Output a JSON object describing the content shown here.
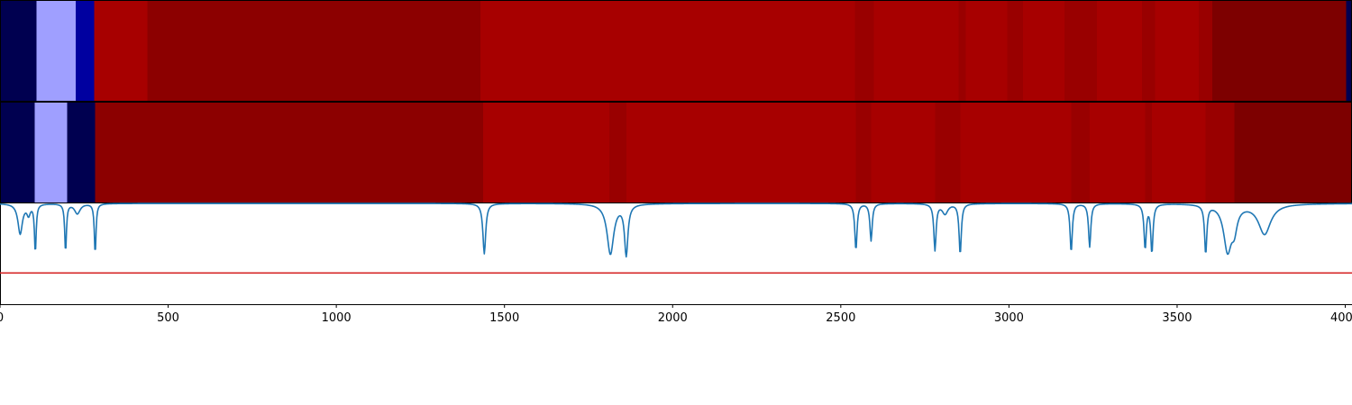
{
  "chart_data": {
    "type": "heatmap",
    "x_axis": {
      "range": [
        0,
        4020
      ],
      "ticks": [
        0,
        500,
        1000,
        1500,
        2000,
        2500,
        3000,
        3500,
        4000
      ],
      "tick_labels": [
        "0",
        "500",
        "1000",
        "1500",
        "2000",
        "2500",
        "3000",
        "3500",
        "4000"
      ]
    },
    "colors": {
      "navy": "#000050",
      "light_blue": "#9f9fff",
      "blue": "#0000a0",
      "red": "#a70000",
      "dark_red": "#8c0000",
      "mid_red": "#990000",
      "maroon": "#7d0000",
      "signal": "#1f77b4",
      "threshold": "#d62728"
    },
    "heat_rows": [
      {
        "segments": [
          {
            "x0": 0,
            "x1": 108,
            "color": "navy"
          },
          {
            "x0": 108,
            "x1": 225,
            "color": "light_blue"
          },
          {
            "x0": 225,
            "x1": 280,
            "color": "blue"
          },
          {
            "x0": 280,
            "x1": 438,
            "color": "red"
          },
          {
            "x0": 438,
            "x1": 1428,
            "color": "dark_red"
          },
          {
            "x0": 1428,
            "x1": 2542,
            "color": "red"
          },
          {
            "x0": 2542,
            "x1": 2598,
            "color": "mid_red"
          },
          {
            "x0": 2598,
            "x1": 2850,
            "color": "red"
          },
          {
            "x0": 2850,
            "x1": 2872,
            "color": "mid_red"
          },
          {
            "x0": 2872,
            "x1": 2995,
            "color": "red"
          },
          {
            "x0": 2995,
            "x1": 3042,
            "color": "mid_red"
          },
          {
            "x0": 3042,
            "x1": 3165,
            "color": "red"
          },
          {
            "x0": 3165,
            "x1": 3262,
            "color": "mid_red"
          },
          {
            "x0": 3262,
            "x1": 3395,
            "color": "red"
          },
          {
            "x0": 3395,
            "x1": 3435,
            "color": "mid_red"
          },
          {
            "x0": 3435,
            "x1": 3565,
            "color": "red"
          },
          {
            "x0": 3565,
            "x1": 3605,
            "color": "mid_red"
          },
          {
            "x0": 3605,
            "x1": 4002,
            "color": "maroon"
          },
          {
            "x0": 4002,
            "x1": 4020,
            "color": "navy"
          }
        ]
      },
      {
        "segments": [
          {
            "x0": 0,
            "x1": 103,
            "color": "navy"
          },
          {
            "x0": 103,
            "x1": 200,
            "color": "light_blue"
          },
          {
            "x0": 200,
            "x1": 283,
            "color": "navy"
          },
          {
            "x0": 283,
            "x1": 1437,
            "color": "dark_red"
          },
          {
            "x0": 1437,
            "x1": 1812,
            "color": "red"
          },
          {
            "x0": 1812,
            "x1": 1862,
            "color": "mid_red"
          },
          {
            "x0": 1862,
            "x1": 2545,
            "color": "red"
          },
          {
            "x0": 2545,
            "x1": 2590,
            "color": "mid_red"
          },
          {
            "x0": 2590,
            "x1": 2780,
            "color": "red"
          },
          {
            "x0": 2780,
            "x1": 2855,
            "color": "mid_red"
          },
          {
            "x0": 2855,
            "x1": 3185,
            "color": "red"
          },
          {
            "x0": 3185,
            "x1": 3240,
            "color": "mid_red"
          },
          {
            "x0": 3240,
            "x1": 3405,
            "color": "red"
          },
          {
            "x0": 3405,
            "x1": 3425,
            "color": "mid_red"
          },
          {
            "x0": 3425,
            "x1": 3585,
            "color": "red"
          },
          {
            "x0": 3585,
            "x1": 3670,
            "color": "mid_red"
          },
          {
            "x0": 3670,
            "x1": 4020,
            "color": "maroon"
          }
        ]
      }
    ],
    "line_panel": {
      "y_range": [
        0,
        1
      ],
      "baseline": 1.0,
      "threshold": 0.31,
      "dips": [
        {
          "x": 60,
          "depth": 0.3,
          "width": 8
        },
        {
          "x": 85,
          "depth": 0.1,
          "width": 6
        },
        {
          "x": 105,
          "depth": 0.48,
          "width": 3
        },
        {
          "x": 195,
          "depth": 0.48,
          "width": 3
        },
        {
          "x": 230,
          "depth": 0.1,
          "width": 10
        },
        {
          "x": 283,
          "depth": 0.5,
          "width": 3
        },
        {
          "x": 1440,
          "depth": 0.5,
          "width": 5
        },
        {
          "x": 1815,
          "depth": 0.5,
          "width": 12
        },
        {
          "x": 1862,
          "depth": 0.5,
          "width": 6
        },
        {
          "x": 2545,
          "depth": 0.46,
          "width": 4
        },
        {
          "x": 2590,
          "depth": 0.37,
          "width": 4
        },
        {
          "x": 2780,
          "depth": 0.46,
          "width": 4
        },
        {
          "x": 2810,
          "depth": 0.1,
          "width": 10
        },
        {
          "x": 2855,
          "depth": 0.5,
          "width": 4
        },
        {
          "x": 3185,
          "depth": 0.48,
          "width": 4
        },
        {
          "x": 3240,
          "depth": 0.43,
          "width": 4
        },
        {
          "x": 3405,
          "depth": 0.44,
          "width": 4
        },
        {
          "x": 3425,
          "depth": 0.48,
          "width": 4
        },
        {
          "x": 3585,
          "depth": 0.48,
          "width": 4
        },
        {
          "x": 3650,
          "depth": 0.45,
          "width": 14
        },
        {
          "x": 3670,
          "depth": 0.2,
          "width": 10
        },
        {
          "x": 3760,
          "depth": 0.3,
          "width": 22
        }
      ]
    }
  }
}
